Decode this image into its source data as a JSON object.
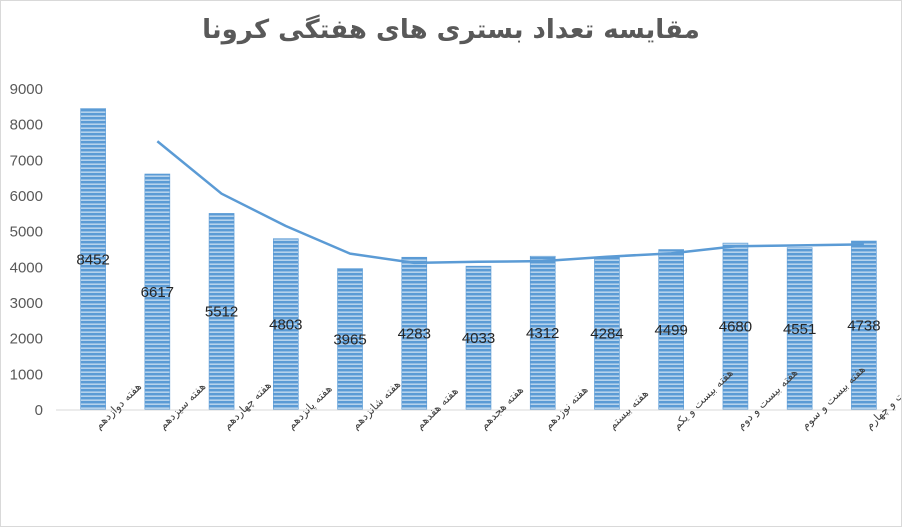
{
  "chart_data": {
    "type": "bar",
    "title": "مقایسه تعداد بستری های هفتگی کرونا",
    "categories": [
      "هفته دوازدهم",
      "هفته سیزدهم",
      "هفته چهاردهم",
      "هفته پانزدهم",
      "هفته شانزدهم",
      "هفته هفدهم",
      "هفته هجدهم",
      "هفته نوزدهم",
      "هفته بیستم",
      "هفته بیست و یکم",
      "هفته بیست و دوم",
      "هفته بیست و سوم",
      "هفته بیست و چهارم"
    ],
    "values": [
      8452,
      6617,
      5512,
      4803,
      3965,
      4283,
      4033,
      4312,
      4284,
      4499,
      4680,
      4551,
      4738
    ],
    "trendline": {
      "type": "moving-average",
      "values": [
        null,
        7535,
        6065,
        5158,
        4384,
        4124,
        4158,
        4173,
        4298,
        4392,
        4590,
        4616,
        4645
      ]
    },
    "yticks": [
      0,
      1000,
      2000,
      3000,
      4000,
      5000,
      6000,
      7000,
      8000,
      9000
    ],
    "ylim": [
      0,
      9000
    ],
    "grid": false,
    "legend": "none",
    "colors": {
      "bar": "#5b9bd5",
      "bar_stripe": "#ffffff",
      "line": "#5b9bd5",
      "axis": "#d9d9d9"
    }
  }
}
